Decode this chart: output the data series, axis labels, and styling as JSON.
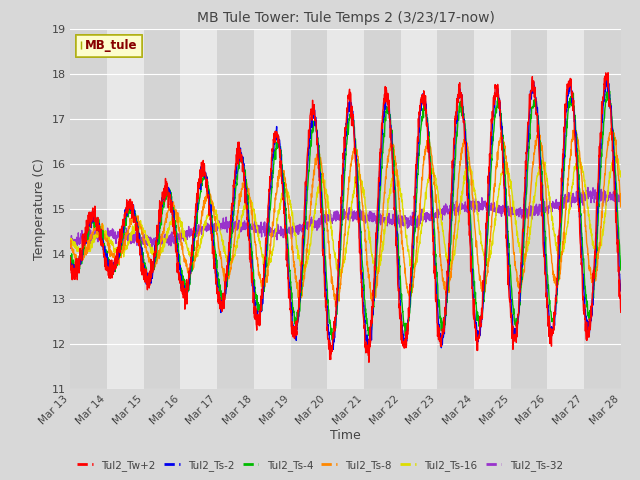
{
  "title": "MB Tule Tower: Tule Temps 2 (3/23/17-now)",
  "xlabel": "Time",
  "ylabel": "Temperature (C)",
  "ylim": [
    11.0,
    19.0
  ],
  "yticks": [
    11.0,
    12.0,
    13.0,
    14.0,
    15.0,
    16.0,
    17.0,
    18.0,
    19.0
  ],
  "background_color": "#e8e8e8",
  "plot_bg_color": "#e8e8e8",
  "legend_label": "MB_tule",
  "series_colors": {
    "Tul2_Tw+2": "#ff0000",
    "Tul2_Ts-2": "#0000ee",
    "Tul2_Ts-4": "#00bb00",
    "Tul2_Ts-8": "#ff8800",
    "Tul2_Ts-16": "#dddd00",
    "Tul2_Ts-32": "#9933cc"
  },
  "xtick_labels": [
    "Mar 13",
    "Mar 14",
    "Mar 15",
    "Mar 16",
    "Mar 17",
    "Mar 18",
    "Mar 19",
    "Mar 20",
    "Mar 21",
    "Mar 22",
    "Mar 23",
    "Mar 24",
    "Mar 25",
    "Mar 26",
    "Mar 27",
    "Mar 28"
  ],
  "xtick_positions": [
    0,
    1,
    2,
    3,
    4,
    5,
    6,
    7,
    8,
    9,
    10,
    11,
    12,
    13,
    14,
    15
  ]
}
